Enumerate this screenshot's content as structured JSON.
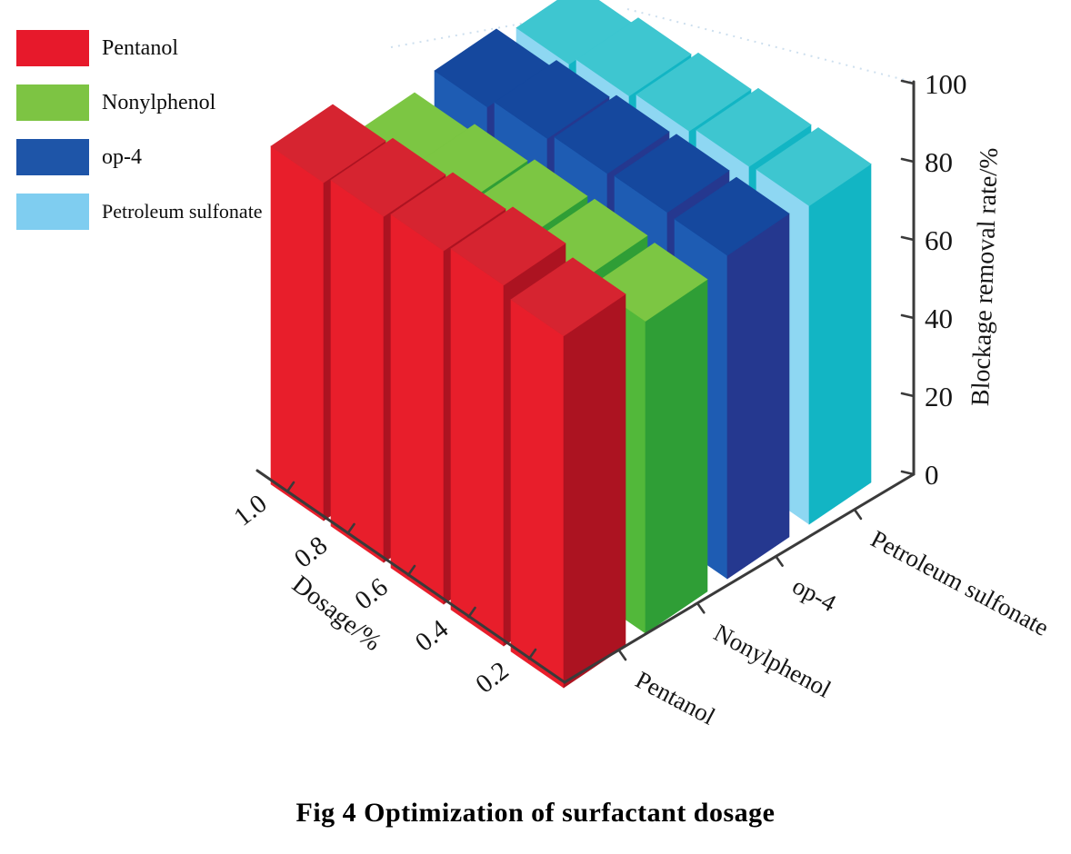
{
  "figure": {
    "caption": "Fig 4 Optimization of surfactant dosage"
  },
  "legend": {
    "position": "top-left",
    "items": [
      {
        "label": "Pentanol",
        "color": "#e7192b"
      },
      {
        "label": "Nonylphenol",
        "color": "#7dc443"
      },
      {
        "label": "op-4",
        "color": "#1e55a8"
      },
      {
        "label": "Petroleum sulfonate",
        "color": "#7fcdf0"
      }
    ]
  },
  "chart_data": {
    "type": "bar",
    "projection": "3d",
    "title": "Fig 4 Optimization of surfactant dosage",
    "xlabel": "Dosage/%",
    "x": [
      0.2,
      0.4,
      0.6,
      0.8,
      1.0
    ],
    "x_tick_labels": [
      "0.2",
      "0.4",
      "0.6",
      "0.8",
      "1.0"
    ],
    "categories": [
      "Pentanol",
      "Nonylphenol",
      "op-4",
      "Petroleum sulfonate"
    ],
    "zlabel": "Blockage removal rate/%",
    "z_ticks": [
      "0",
      "20",
      "40",
      "60",
      "80",
      "100"
    ],
    "zlim": [
      0,
      100
    ],
    "grid": false,
    "legend_position": "top-left",
    "series": [
      {
        "name": "Pentanol",
        "values": [
          87,
          92,
          93,
          94,
          95
        ],
        "faces": {
          "left": "#e81e2b",
          "top": "#d62430",
          "right": "#ac1321"
        }
      },
      {
        "name": "Nonylphenol",
        "values": [
          80,
          83,
          85,
          86,
          86
        ],
        "faces": {
          "left": "#52b83a",
          "top": "#7cc643",
          "right": "#2f9e36"
        }
      },
      {
        "name": "op-4",
        "values": [
          86,
          89,
          91,
          92,
          92
        ],
        "faces": {
          "left": "#1e5cb3",
          "top": "#15489e",
          "right": "#25388f"
        }
      },
      {
        "name": "Petroleum sulfonate",
        "values": [
          88,
          90,
          91,
          92,
          92
        ],
        "faces": {
          "left": "#8ed7f2",
          "top": "#3ec6d0",
          "right": "#12b5c4"
        }
      }
    ],
    "colors": {
      "axis": "#3a3a3a",
      "text": "#161616",
      "background": "#ffffff",
      "backwall_hint": "#b9d2e8"
    }
  }
}
